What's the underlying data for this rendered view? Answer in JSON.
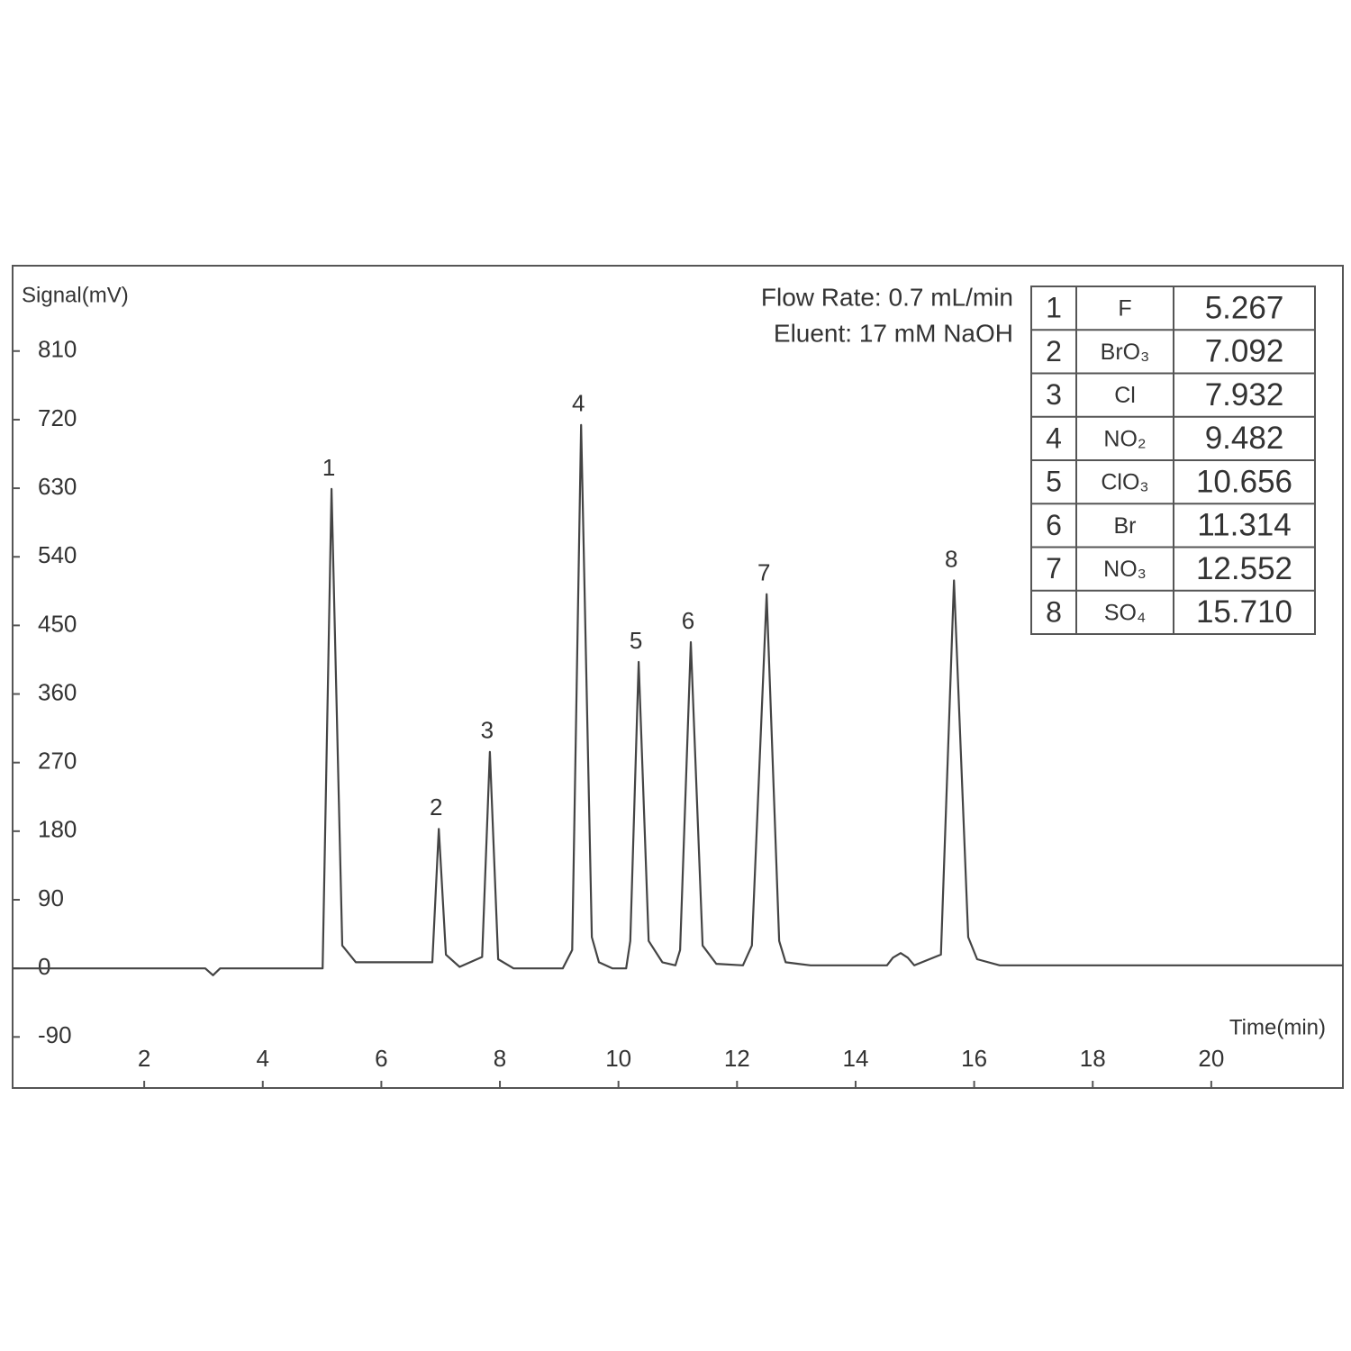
{
  "chart_data": {
    "type": "line",
    "y_label": "Signal(mV)",
    "x_label": "Time(min)",
    "annotations": [
      "Flow Rate: 0.7 mL/min",
      "Eluent: 17 mM NaOH"
    ],
    "xlim": [
      -0.22,
      22.22
    ],
    "ylim": [
      -157,
      922
    ],
    "xticks": [
      2,
      4,
      6,
      8,
      10,
      12,
      14,
      16,
      18,
      20
    ],
    "yticks": [
      -90,
      0,
      90,
      180,
      270,
      360,
      450,
      540,
      630,
      720,
      810
    ],
    "color": "#444444",
    "x": [
      -0.22,
      2.61,
      3.03,
      3.16,
      3.28,
      5.01,
      5.16,
      5.34,
      5.57,
      6.86,
      6.97,
      7.09,
      7.32,
      7.7,
      7.83,
      7.97,
      8.23,
      9.06,
      9.22,
      9.37,
      9.55,
      9.67,
      9.9,
      10.13,
      10.2,
      10.34,
      10.51,
      10.74,
      10.96,
      11.04,
      11.22,
      11.42,
      11.65,
      12.1,
      12.25,
      12.5,
      12.71,
      12.82,
      13.24,
      14.53,
      14.63,
      14.76,
      14.88,
      14.99,
      15.44,
      15.66,
      15.9,
      16.05,
      16.43,
      22.22
    ],
    "values": [
      0,
      0,
      0,
      -9,
      0,
      0,
      629,
      30,
      8,
      8,
      183,
      18,
      2,
      15,
      284,
      12,
      0,
      0,
      24,
      713,
      41,
      8,
      0,
      0,
      36,
      402,
      36,
      8,
      4,
      24,
      428,
      30,
      6,
      4,
      30,
      491,
      36,
      8,
      4,
      4,
      14,
      20,
      14,
      4,
      18,
      509,
      41,
      12,
      4,
      4
    ],
    "peak_labels": [
      "1",
      "2",
      "3",
      "4",
      "5",
      "6",
      "7",
      "8"
    ],
    "table": {
      "rows": [
        [
          "1",
          "F",
          "5.267"
        ],
        [
          "2",
          "BrO₃",
          "7.092"
        ],
        [
          "3",
          "Cl",
          "7.932"
        ],
        [
          "4",
          "NO₂",
          "9.482"
        ],
        [
          "5",
          "ClO₃",
          "10.656"
        ],
        [
          "6",
          "Br",
          "11.314"
        ],
        [
          "7",
          "NO₃",
          "12.552"
        ],
        [
          "8",
          "SO₄",
          "15.710"
        ]
      ]
    }
  }
}
